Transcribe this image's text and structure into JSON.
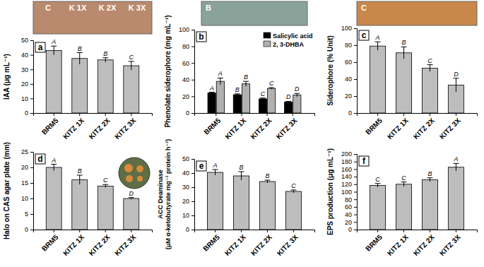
{
  "chart_data": [
    {
      "type": "bar",
      "title": "a",
      "y_label": "IAA (μg mL⁻¹)",
      "categories": [
        "BRM5",
        "KITZ 1X",
        "KITZ 2X",
        "KITZ 3X"
      ],
      "values": [
        43,
        37.5,
        36.5,
        32.5
      ],
      "errors": [
        3,
        4,
        1.5,
        3
      ],
      "letters": [
        "A",
        "B",
        "B",
        "C"
      ],
      "color": "#bdbdbd",
      "ylim": [
        0,
        50
      ],
      "yticks": [
        0,
        10,
        20,
        30,
        40,
        50
      ],
      "grid": false,
      "annotations": [
        "C",
        "K 1X",
        "K 2X",
        "K 3X"
      ]
    },
    {
      "type": "bar",
      "title": "b",
      "y_label": "Phenolate siderophore (mg mL⁻¹)",
      "categories": [
        "BRM5",
        "KITZ 1X",
        "KITZ 2X",
        "KITZ 3X"
      ],
      "series": [
        {
          "name": "Salicylic acid",
          "color": "#000000",
          "values": [
            24,
            22,
            17,
            13
          ],
          "errors": [
            1,
            1,
            1,
            1
          ],
          "letters": [
            "A",
            "B",
            "C",
            "D"
          ]
        },
        {
          "name": "2, 3-DHBA",
          "color": "#b0b0b0",
          "values": [
            38,
            35,
            29.5,
            21.5
          ],
          "errors": [
            4,
            3,
            1,
            2
          ],
          "letters": [
            "A",
            "B",
            "C",
            "D"
          ]
        }
      ],
      "ylim": [
        0,
        100
      ],
      "yticks": [
        0,
        20,
        40,
        60,
        80,
        100
      ],
      "grid": false,
      "legend": "upper right",
      "annotations": [
        "B"
      ]
    },
    {
      "type": "bar",
      "title": "c",
      "y_label": "Siderophore (% Unit)",
      "categories": [
        "BRM5",
        "KITZ 1X",
        "KITZ 2X",
        "KITZ 3X"
      ],
      "values": [
        79,
        71,
        53,
        33
      ],
      "errors": [
        5,
        7,
        4,
        8
      ],
      "letters": [
        "A",
        "B",
        "C",
        "D"
      ],
      "color": "#bdbdbd",
      "ylim": [
        0,
        100
      ],
      "yticks": [
        0,
        20,
        40,
        60,
        80,
        100
      ],
      "grid": false,
      "annotations": [
        "C"
      ]
    },
    {
      "type": "bar",
      "title": "d",
      "y_label": "Halo on CAS agar plate (mm)",
      "categories": [
        "BRM5",
        "KITZ 1X",
        "KITZ 2X",
        "KITZ 3X"
      ],
      "values": [
        20,
        16,
        14,
        10
      ],
      "errors": [
        1,
        1.5,
        0.5,
        0.3
      ],
      "letters": [
        "A",
        "B",
        "C",
        "D"
      ],
      "color": "#bdbdbd",
      "ylim": [
        0,
        25
      ],
      "yticks": [
        0,
        5,
        10,
        15,
        20,
        25
      ],
      "grid": false
    },
    {
      "type": "bar",
      "title": "e",
      "y_label": [
        "ACC Deaminase",
        "(μM α-ketobutyrate mg⁻¹ protein h⁻¹)"
      ],
      "categories": [
        "BRM5",
        "KITZ 1X",
        "KITZ 2X",
        "KITZ 3X"
      ],
      "values": [
        40.5,
        38,
        34,
        27
      ],
      "errors": [
        2,
        3,
        1,
        1
      ],
      "letters": [
        "A",
        "B",
        "B",
        "C"
      ],
      "color": "#bdbdbd",
      "ylim": [
        0,
        50
      ],
      "yticks": [
        0,
        10,
        20,
        30,
        40,
        50
      ],
      "grid": false
    },
    {
      "type": "bar",
      "title": "f",
      "y_label": "EPS production (μg mL⁻¹)",
      "categories": [
        "BRM5",
        "KITZ 1X",
        "KITZ 2X",
        "KITZ 3X"
      ],
      "values": [
        117,
        120,
        132,
        165
      ],
      "errors": [
        5,
        6,
        5,
        10
      ],
      "letters": [
        "C",
        "C",
        "B",
        "A"
      ],
      "color": "#bdbdbd",
      "ylim": [
        0,
        200
      ],
      "yticks": [
        0,
        20,
        40,
        60,
        80,
        100,
        120,
        140,
        160,
        180,
        200
      ],
      "grid": false
    }
  ]
}
